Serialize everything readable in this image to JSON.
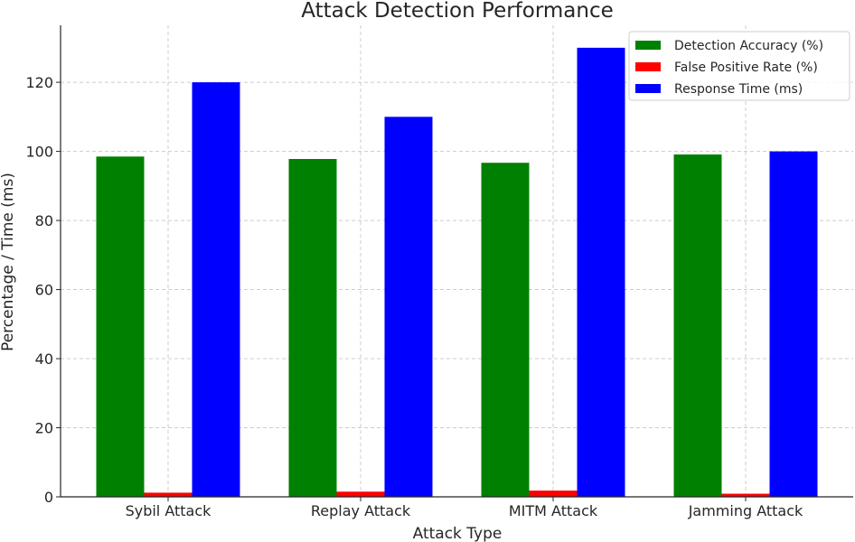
{
  "chart_data": {
    "type": "bar",
    "title": "Attack Detection Performance",
    "xlabel": "Attack Type",
    "ylabel": "Percentage / Time (ms)",
    "categories": [
      "Sybil Attack",
      "Replay Attack",
      "MITM Attack",
      "Jamming Attack"
    ],
    "series": [
      {
        "name": "Detection Accuracy (%)",
        "color": "#008000",
        "values": [
          98.5,
          97.8,
          96.7,
          99.1
        ]
      },
      {
        "name": "False Positive Rate (%)",
        "color": "#ff0000",
        "values": [
          1.2,
          1.5,
          1.8,
          0.9
        ]
      },
      {
        "name": "Response Time (ms)",
        "color": "#0000ff",
        "values": [
          120,
          110,
          130,
          100
        ]
      }
    ],
    "yticks": [
      0,
      20,
      40,
      60,
      80,
      100,
      120
    ],
    "ylim": [
      0,
      136.5
    ],
    "grid": true,
    "legend_position": "top-right"
  }
}
